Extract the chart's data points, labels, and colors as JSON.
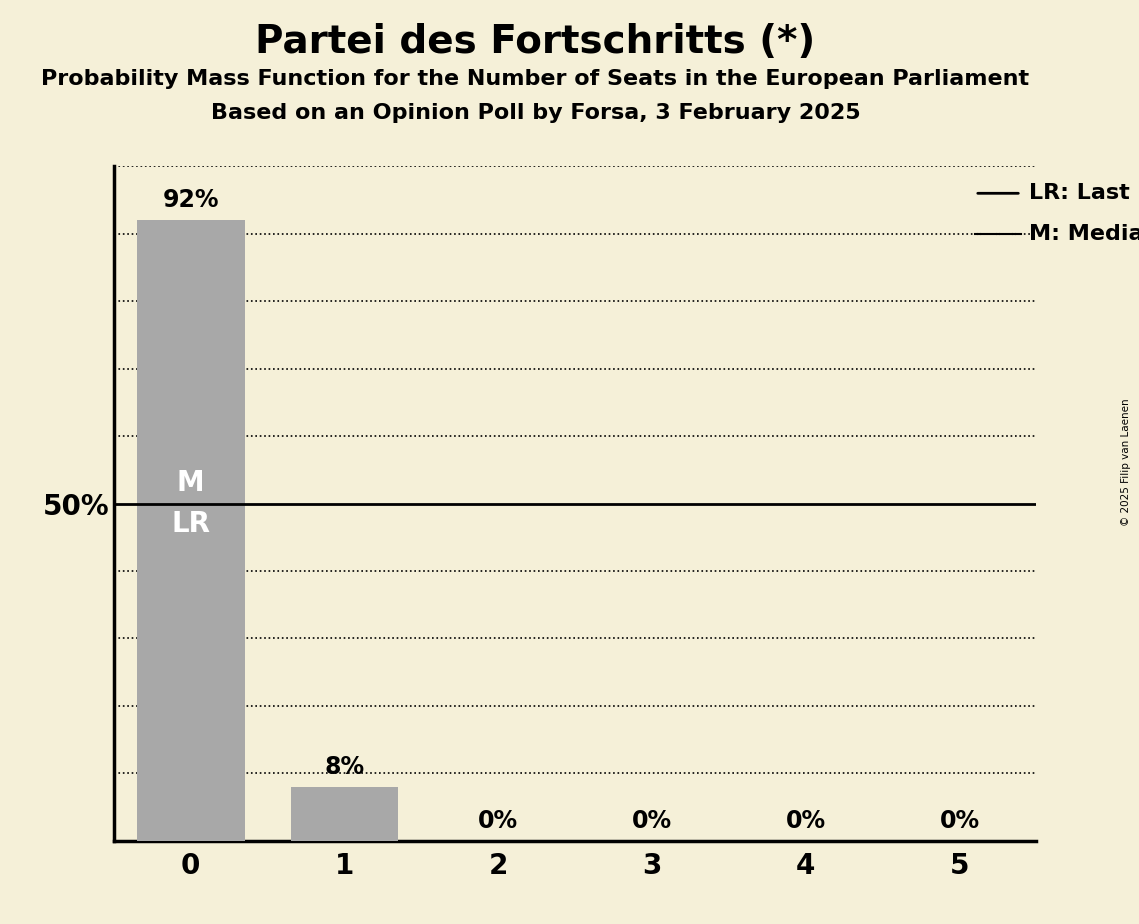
{
  "title": "Partei des Fortschritts (*)",
  "subtitle1": "Probability Mass Function for the Number of Seats in the European Parliament",
  "subtitle2": "Based on an Opinion Poll by Forsa, 3 February 2025",
  "copyright": "© 2025 Filip van Laenen",
  "categories": [
    0,
    1,
    2,
    3,
    4,
    5
  ],
  "values": [
    0.92,
    0.08,
    0.0,
    0.0,
    0.0,
    0.0
  ],
  "labels": [
    "92%",
    "8%",
    "0%",
    "0%",
    "0%",
    "0%"
  ],
  "bar_color": "#a8a8a8",
  "background_color": "#f5f0d8",
  "median_label": "M",
  "lr_label": "LR",
  "legend_lr": "LR: Last Result",
  "legend_m": "M: Median",
  "ylabel_50": "50%",
  "ylim": [
    0,
    1.0
  ],
  "ytick_50": 0.5,
  "title_fontsize": 28,
  "subtitle_fontsize": 16,
  "bar_label_fontsize": 17,
  "axis_label_fontsize": 20,
  "tick_fontsize": 20,
  "legend_fontsize": 16,
  "marker_text_fontsize": 20,
  "dotted_grid_levels": [
    0.1,
    0.2,
    0.3,
    0.4,
    0.6,
    0.7,
    0.8,
    0.9,
    1.0
  ],
  "solid_line_level": 0.5,
  "bar_width": 0.7
}
